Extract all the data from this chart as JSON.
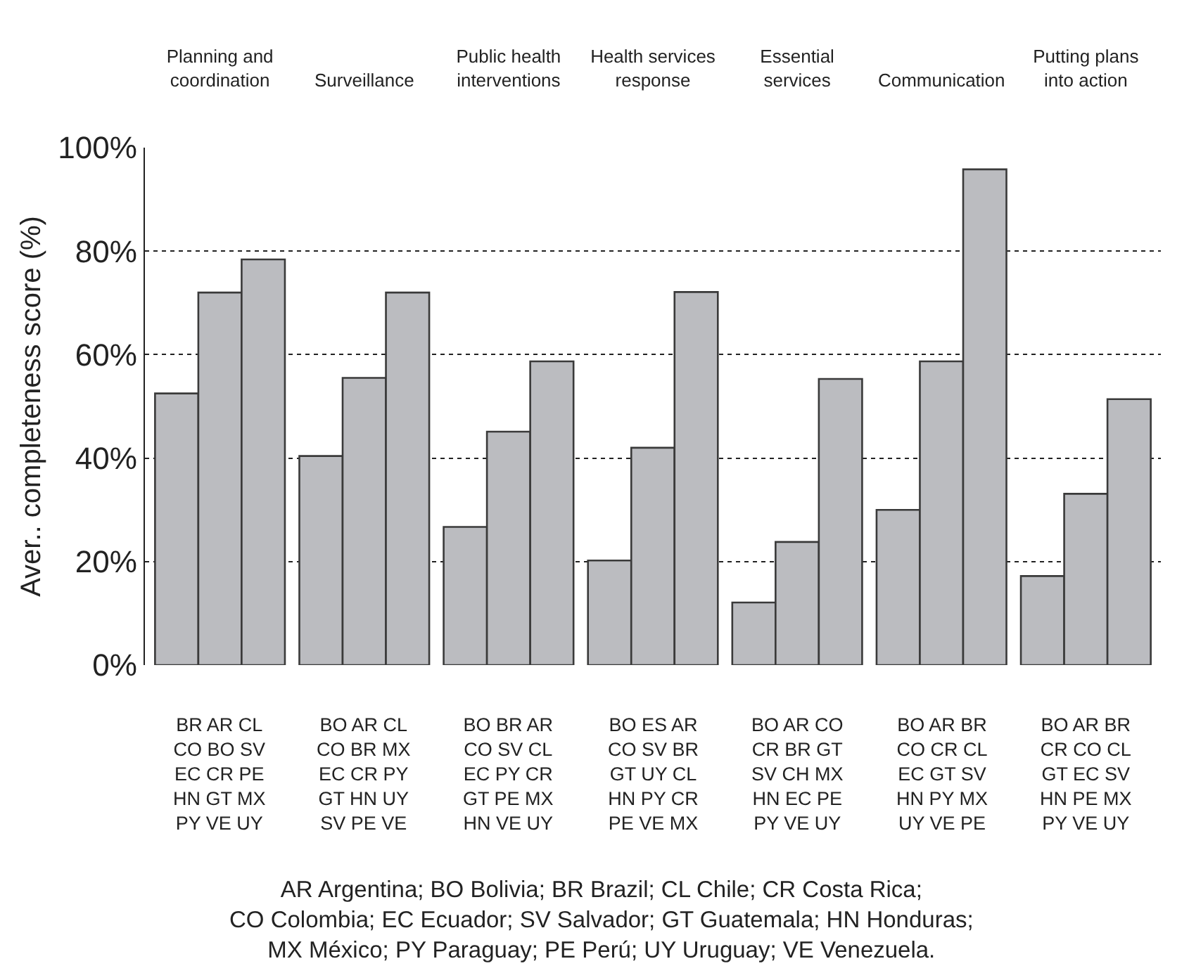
{
  "chart_data": {
    "type": "bar",
    "ylabel": "Aver.. completeness score (%)",
    "categories": [
      "Planning and\ncoordination",
      "Surveillance",
      "Public health\ninterventions",
      "Health services\nresponse",
      "Essential\nservices",
      "Communication",
      "Putting plans\ninto action"
    ],
    "series": [
      {
        "color": "#bbbcc0",
        "values": [
          52.5,
          40.4,
          26.7,
          20.2,
          12.1,
          30.0,
          17.2
        ]
      },
      {
        "color": "#bbbcc0",
        "values": [
          72.0,
          55.5,
          45.1,
          42.0,
          23.8,
          58.7,
          33.1
        ]
      },
      {
        "color": "#bbbcc0",
        "values": [
          78.4,
          72.0,
          58.7,
          72.1,
          55.3,
          95.8,
          51.4
        ]
      }
    ],
    "ylim": [
      0,
      100
    ],
    "yticks": [
      {
        "value": 0,
        "label": "0%"
      },
      {
        "value": 20,
        "label": "20%"
      },
      {
        "value": 40,
        "label": "40%"
      },
      {
        "value": 60,
        "label": "60%"
      },
      {
        "value": 80,
        "label": "80%"
      },
      {
        "value": 100,
        "label": "100%"
      }
    ],
    "grid": "y",
    "annotations": [
      "BR AR CL\nCO BO SV\nEC CR PE\nHN GT MX\nPY VE UY",
      "BO AR CL\nCO BR MX\nEC CR PY\nGT HN UY\nSV PE VE",
      "BO BR AR\nCO SV CL\nEC PY CR\nGT PE MX\nHN VE UY",
      "BO ES AR\nCO SV BR\nGT UY CL\nHN PY CR\nPE VE MX",
      "BO AR CO\nCR BR GT\nSV CH MX\nHN EC PE\nPY VE UY",
      "BO AR BR\nCO CR CL\nEC GT SV\nHN PY MX\nUY VE PE",
      "BO AR BR\nCR CO CL\nGT EC SV\nHN PE MX\nPY VE UY",
      "AR Argentina; BO Bolivia; BR Brazil; CL Chile; CR Costa Rica;\nCO Colombia; EC Ecuador; SV Salvador; GT Guatemala; HN Honduras;\nMX México; PY Paraguay; PE Perú; UY Uruguay; VE Venezuela."
    ]
  }
}
